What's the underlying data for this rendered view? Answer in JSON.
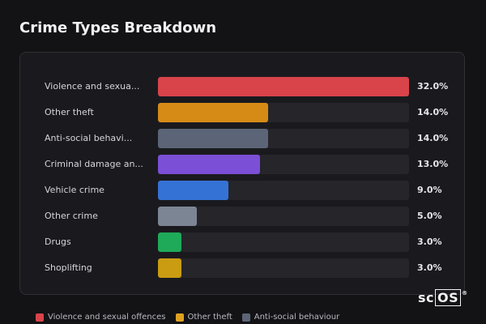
{
  "title": "Crime Types Breakdown",
  "chart_data": {
    "type": "bar",
    "orientation": "horizontal",
    "xlim": [
      0,
      32
    ],
    "categories": [
      "Violence and sexua...",
      "Other theft",
      "Anti-social behavi...",
      "Criminal damage an...",
      "Vehicle crime",
      "Other crime",
      "Drugs",
      "Shoplifting"
    ],
    "values": [
      32.0,
      14.0,
      14.0,
      13.0,
      9.0,
      5.0,
      3.0,
      3.0
    ],
    "value_labels": [
      "32.0%",
      "14.0%",
      "14.0%",
      "13.0%",
      "9.0%",
      "5.0%",
      "3.0%",
      "3.0%"
    ],
    "colors": [
      "#d9434a",
      "#d68b17",
      "#5b6577",
      "#7b4fd6",
      "#3572d6",
      "#7c8594",
      "#1faa59",
      "#c99c12"
    ],
    "legend": [
      {
        "label": "Violence and sexual offences",
        "color": "#d9434a"
      },
      {
        "label": "Other theft",
        "color": "#e0a020"
      },
      {
        "label": "Anti-social behaviour",
        "color": "#5b6577"
      }
    ],
    "legend_placement": "bottom",
    "grid": false
  },
  "logo": {
    "text_sc": "sc",
    "text_os": "OS",
    "mark": "®"
  }
}
